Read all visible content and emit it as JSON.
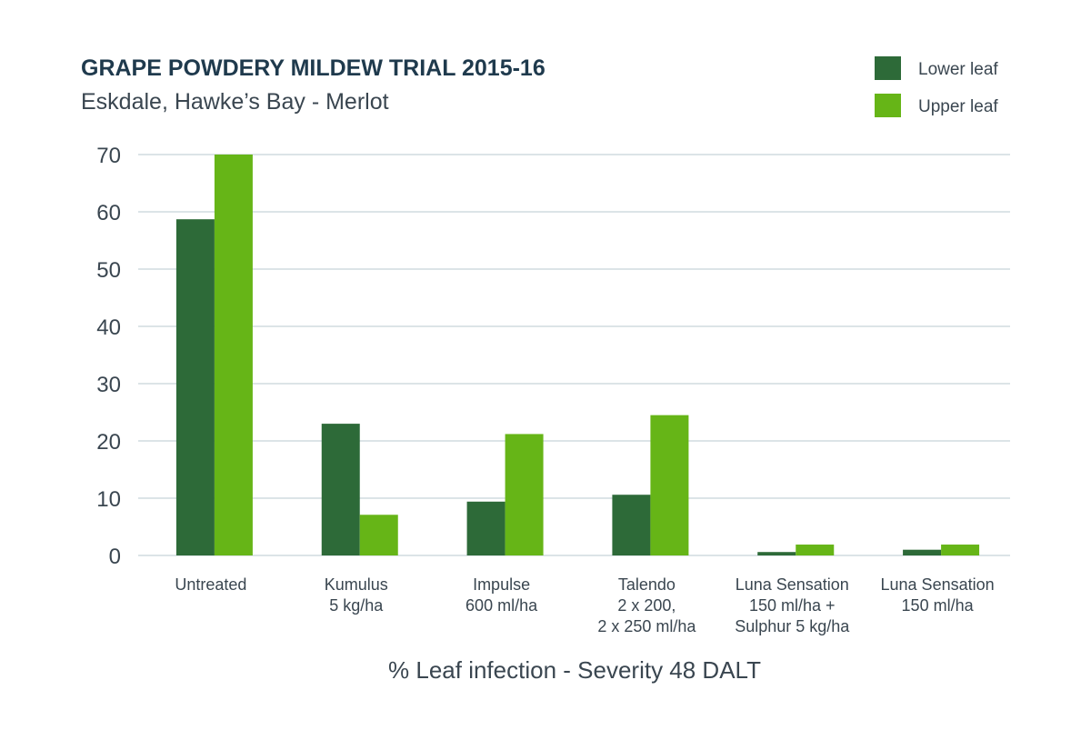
{
  "chart_data": {
    "type": "bar",
    "title": "GRAPE POWDERY MILDEW TRIAL 2015-16",
    "subtitle": "Eskdale, Hawke’s Bay - Merlot",
    "xlabel": "% Leaf infection - Severity 48 DALT",
    "ylabel": "",
    "ylim": [
      0,
      70
    ],
    "yticks": [
      0,
      10,
      20,
      30,
      40,
      50,
      60,
      70
    ],
    "grid": true,
    "legend_position": "top-right",
    "categories": [
      [
        "Untreated"
      ],
      [
        "Kumulus",
        "5 kg/ha"
      ],
      [
        "Impulse",
        "600 ml/ha"
      ],
      [
        "Talendo",
        "2 x 200,",
        "2 x 250 ml/ha"
      ],
      [
        "Luna Sensation",
        "150 ml/ha +",
        "Sulphur 5 kg/ha"
      ],
      [
        "Luna Sensation",
        "150 ml/ha"
      ]
    ],
    "series": [
      {
        "name": "Lower leaf",
        "color": "#2d6a38",
        "values": [
          58.7,
          23.0,
          9.4,
          10.6,
          0.6,
          1.0
        ]
      },
      {
        "name": "Upper leaf",
        "color": "#66b517",
        "values": [
          70.0,
          7.1,
          21.2,
          24.5,
          1.9,
          1.9
        ]
      }
    ]
  }
}
